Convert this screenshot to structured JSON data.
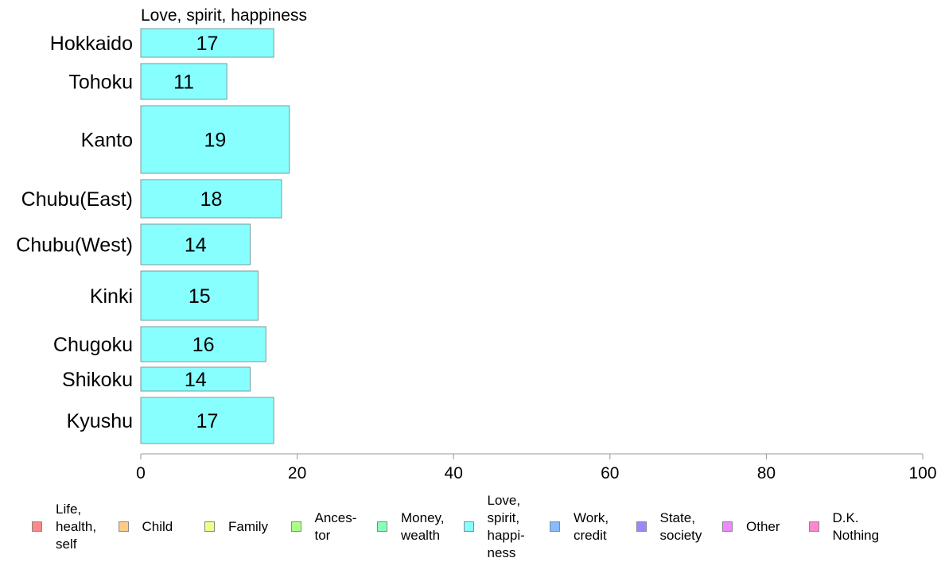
{
  "chart_data": {
    "type": "bar",
    "orientation": "horizontal",
    "title": "Love, spirit, happiness",
    "categories": [
      "Hokkaido",
      "Tohoku",
      "Kanto",
      "Chubu(East)",
      "Chubu(West)",
      "Kinki",
      "Chugoku",
      "Shikoku",
      "Kyushu"
    ],
    "series": [
      {
        "name": "Love, spirit, happiness",
        "values": [
          17,
          11,
          19,
          18,
          14,
          15,
          16,
          14,
          17
        ]
      }
    ],
    "xlim": [
      0,
      100
    ],
    "xticks": [
      0,
      20,
      40,
      60,
      80,
      100
    ],
    "bar_color": "#88ffff",
    "grid": false,
    "legend_position": "bottom"
  },
  "legend": {
    "items": [
      {
        "lines": [
          "Life,",
          "health,",
          "self"
        ],
        "color": "#ff8888"
      },
      {
        "lines": [
          "Child"
        ],
        "color": "#ffcc88"
      },
      {
        "lines": [
          "Family"
        ],
        "color": "#eeff88"
      },
      {
        "lines": [
          "Ances-",
          "tor"
        ],
        "color": "#aaff88"
      },
      {
        "lines": [
          "Money,",
          "wealth"
        ],
        "color": "#88ffbb"
      },
      {
        "lines": [
          "Love,",
          "spirit,",
          "happi-",
          "ness"
        ],
        "color": "#88ffff"
      },
      {
        "lines": [
          "Work,",
          "credit"
        ],
        "color": "#88bbff"
      },
      {
        "lines": [
          "State,",
          "society"
        ],
        "color": "#9988ff"
      },
      {
        "lines": [
          "Other"
        ],
        "color": "#ee88ff"
      },
      {
        "lines": [
          "D.K.",
          "Nothing"
        ],
        "color": "#ff88cc"
      }
    ]
  }
}
